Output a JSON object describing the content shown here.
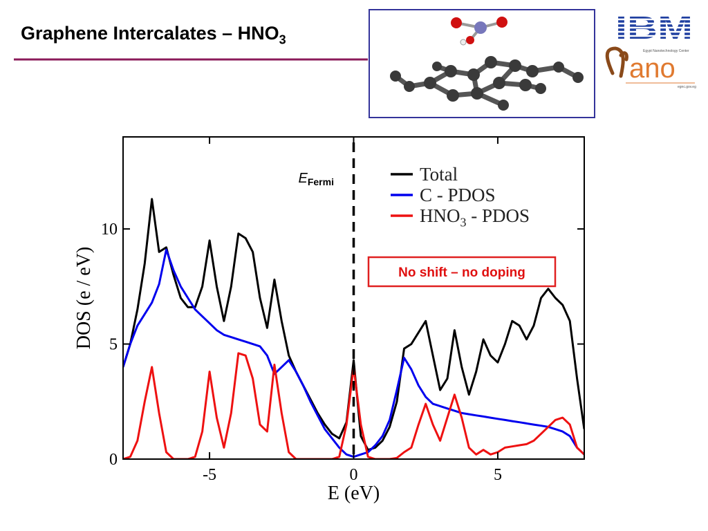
{
  "slide": {
    "title": "Graphene Intercalates – HNO3",
    "logo_ibm": "IBM",
    "logo_nano": "ano",
    "logo_nano_caption": "Egypt Nanotechnology Center",
    "logo_nano_url": "egnc.gov.eg"
  },
  "chart_data": {
    "type": "line",
    "xlabel": "E (eV)",
    "ylabel": "DOS (e / eV)",
    "xlim": [
      -8,
      8
    ],
    "ylim": [
      0,
      14
    ],
    "xticks": [
      -5,
      0,
      5
    ],
    "yticks": [
      0,
      5,
      10
    ],
    "fermi_level": 0,
    "fermi_label": "E",
    "fermi_label_sub": "Fermi",
    "annotation": "No shift – no doping",
    "legend": "upper right",
    "x": [
      -8,
      -7.75,
      -7.5,
      -7.25,
      -7,
      -6.75,
      -6.5,
      -6.25,
      -6,
      -5.75,
      -5.5,
      -5.25,
      -5,
      -4.75,
      -4.5,
      -4.25,
      -4,
      -3.75,
      -3.5,
      -3.25,
      -3,
      -2.75,
      -2.5,
      -2.25,
      -2,
      -1.75,
      -1.5,
      -1.25,
      -1,
      -0.75,
      -0.5,
      -0.25,
      0,
      0.25,
      0.5,
      0.75,
      1,
      1.25,
      1.5,
      1.75,
      2,
      2.25,
      2.5,
      2.75,
      3,
      3.25,
      3.5,
      3.75,
      4,
      4.25,
      4.5,
      4.75,
      5,
      5.25,
      5.5,
      5.75,
      6,
      6.25,
      6.5,
      6.75,
      7,
      7.25,
      7.5,
      7.75,
      8
    ],
    "series": [
      {
        "name": "Total",
        "color": "#000000",
        "values": [
          4.0,
          5.0,
          6.5,
          8.5,
          11.3,
          9.0,
          9.2,
          8.0,
          7.0,
          6.6,
          6.6,
          7.5,
          9.5,
          7.5,
          6.0,
          7.5,
          9.8,
          9.6,
          9.0,
          7.0,
          5.7,
          7.8,
          6.0,
          4.5,
          3.8,
          3.2,
          2.6,
          2.0,
          1.5,
          1.1,
          0.9,
          1.6,
          4.3,
          1.0,
          0.4,
          0.5,
          0.8,
          1.4,
          2.5,
          4.8,
          5.0,
          5.5,
          6.0,
          4.5,
          3.0,
          3.5,
          5.6,
          4.0,
          2.8,
          3.8,
          5.2,
          4.5,
          4.2,
          5.0,
          6.0,
          5.8,
          5.2,
          5.8,
          7.0,
          7.4,
          7.0,
          6.7,
          6.0,
          3.5,
          1.3
        ]
      },
      {
        "name": "C - PDOS",
        "color": "#0000ee",
        "values": [
          4.0,
          5.0,
          5.8,
          6.3,
          6.8,
          7.6,
          9.1,
          8.2,
          7.5,
          7.0,
          6.5,
          6.2,
          5.9,
          5.6,
          5.4,
          5.3,
          5.2,
          5.1,
          5.0,
          4.9,
          4.5,
          3.7,
          4.0,
          4.3,
          3.8,
          3.2,
          2.5,
          1.9,
          1.3,
          0.9,
          0.5,
          0.2,
          0.1,
          0.2,
          0.3,
          0.6,
          1.0,
          1.7,
          3.0,
          4.4,
          3.9,
          3.2,
          2.7,
          2.4,
          2.3,
          2.2,
          2.1,
          2.0,
          1.95,
          1.9,
          1.85,
          1.8,
          1.75,
          1.7,
          1.65,
          1.6,
          1.55,
          1.5,
          1.45,
          1.4,
          1.3,
          1.2,
          1.0,
          0.5,
          0.2
        ]
      },
      {
        "name": "HNO3 - PDOS",
        "color": "#ee1111",
        "values": [
          0,
          0.1,
          0.8,
          2.5,
          4.0,
          2.0,
          0.3,
          0,
          0,
          0,
          0.1,
          1.2,
          3.8,
          1.8,
          0.5,
          2.0,
          4.6,
          4.5,
          3.5,
          1.5,
          1.2,
          4.1,
          2.0,
          0.3,
          0,
          0,
          0,
          0,
          0,
          0,
          0.1,
          1.5,
          4.0,
          1.5,
          0.1,
          0,
          0,
          0,
          0.05,
          0.3,
          0.5,
          1.5,
          2.4,
          1.5,
          0.8,
          1.8,
          2.8,
          1.8,
          0.5,
          0.2,
          0.4,
          0.2,
          0.3,
          0.5,
          0.55,
          0.6,
          0.65,
          0.8,
          1.1,
          1.4,
          1.7,
          1.8,
          1.5,
          0.5,
          0.2
        ]
      }
    ]
  }
}
